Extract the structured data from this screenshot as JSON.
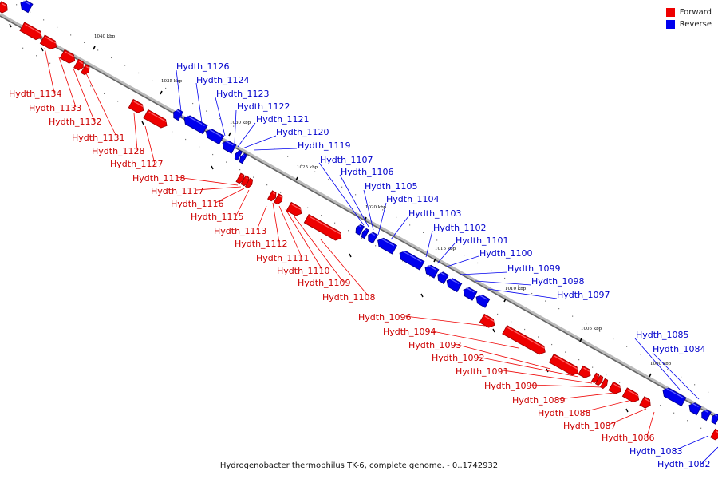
{
  "caption": "Hydrogenobacter thermophilus TK-6, complete genome. - 0..1742932",
  "legend": [
    {
      "label": "Forward",
      "color": "#ee0000"
    },
    {
      "label": "Reverse",
      "color": "#0000ee"
    }
  ],
  "colors": {
    "forward": "#ee0000",
    "reverse": "#0000ee",
    "forward_label": "#cc0000",
    "reverse_label": "#0000cc",
    "backbone": "#888888"
  },
  "ticks": [
    "1040 kbp",
    "1035 kbp",
    "1030 kbp",
    "1025 kbp",
    "1020 kbp",
    "1015 kbp",
    "1010 kbp",
    "1005 kbp",
    "1000 kbp"
  ],
  "genes_forward": [
    "Hydth_1134",
    "Hydth_1133",
    "Hydth_1132",
    "Hydth_1131",
    "Hydth_1128",
    "Hydth_1127",
    "Hydth_1118",
    "Hydth_1117",
    "Hydth_1116",
    "Hydth_1115",
    "Hydth_1113",
    "Hydth_1112",
    "Hydth_1111",
    "Hydth_1110",
    "Hydth_1109",
    "Hydth_1108",
    "Hydth_1096",
    "Hydth_1094",
    "Hydth_1093",
    "Hydth_1092",
    "Hydth_1091",
    "Hydth_1090",
    "Hydth_1089",
    "Hydth_1088",
    "Hydth_1087",
    "Hydth_1086"
  ],
  "genes_reverse": [
    "Hydth_1126",
    "Hydth_1124",
    "Hydth_1123",
    "Hydth_1122",
    "Hydth_1121",
    "Hydth_1120",
    "Hydth_1119",
    "Hydth_1107",
    "Hydth_1106",
    "Hydth_1105",
    "Hydth_1104",
    "Hydth_1103",
    "Hydth_1102",
    "Hydth_1101",
    "Hydth_1100",
    "Hydth_1099",
    "Hydth_1098",
    "Hydth_1097",
    "Hydth_1085",
    "Hydth_1084",
    "Hydth_1083",
    "Hydth_1082"
  ]
}
